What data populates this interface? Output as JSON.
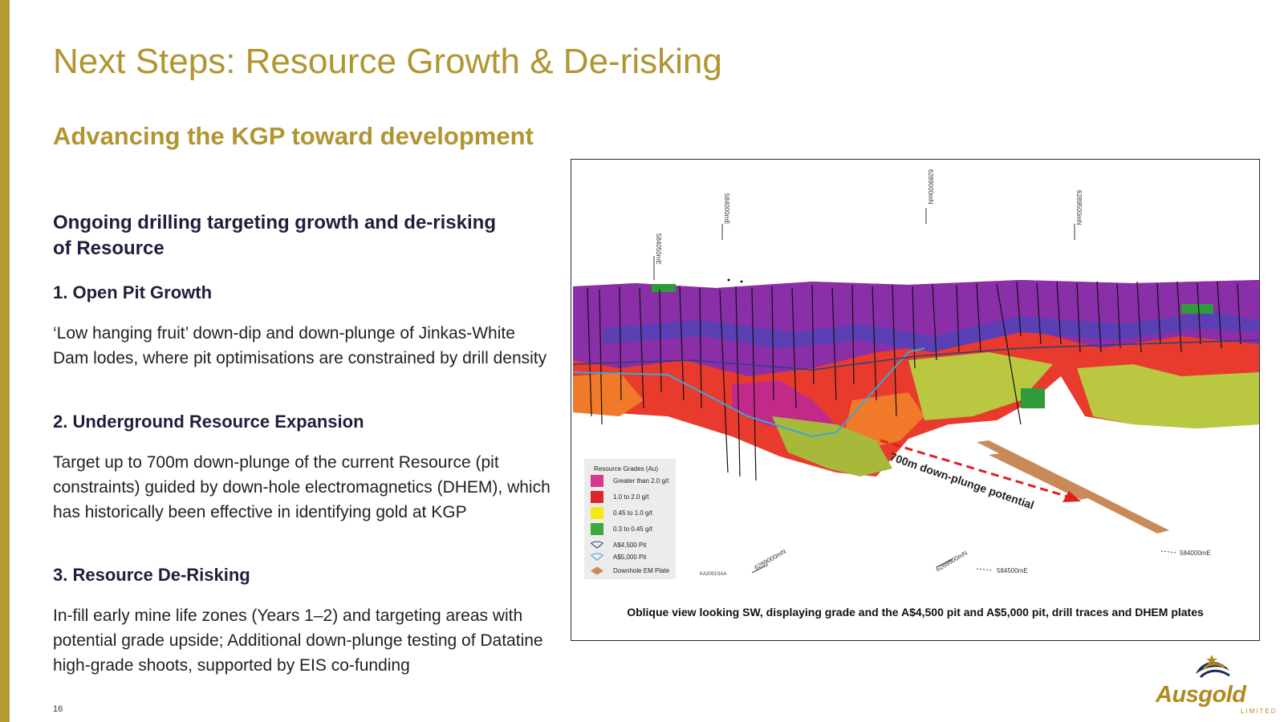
{
  "slide": {
    "title": "Next Steps: Resource Growth & De-risking",
    "subtitle": "Advancing the KGP toward development",
    "section_heading": "Ongoing drilling targeting growth and de-risking of Resource",
    "items": [
      {
        "heading": "1. Open Pit Growth",
        "body": "‘Low hanging fruit’ down-dip and down-plunge of Jinkas-White Dam lodes, where pit optimisations are constrained by drill density"
      },
      {
        "heading": "2. Underground Resource Expansion",
        "body": "Target up to 700m down-plunge of the current Resource (pit constraints) guided by down-hole electromagnetics (DHEM), which has historically been effective in identifying gold at KGP"
      },
      {
        "heading": "3. Resource De-Risking",
        "body": "In-fill early mine life zones (Years 1–2) and targeting areas with potential grade upside; Additional down-plunge testing of Datatine high-grade shoots, supported by EIS co-funding"
      }
    ],
    "page_number": "16",
    "accent_color": "#b09530"
  },
  "figure": {
    "caption": "Oblique view looking SW, displaying grade and the A$4,500 pit and A$5,000 pit, drill traces and DHEM plates",
    "annotation": "700m down-plunge potential",
    "legend_title": "Resource Grades (Au)",
    "legend": [
      {
        "label": "Greater than 2.0 g/t",
        "color": "#d63a8c"
      },
      {
        "label": "1.0 to 2.0 g/t",
        "color": "#e0242a"
      },
      {
        "label": "0.45 to 1.0 g/t",
        "color": "#f2ea12"
      },
      {
        "label": "0.3 to 0.45 g/t",
        "color": "#3daa3c"
      },
      {
        "label": "A$4,500 Pit",
        "color": "#2b3f7a"
      },
      {
        "label": "A$5,000 Pit",
        "color": "#3aa7d6"
      },
      {
        "label": "Downhole EM Plate",
        "color": "#c98a5a"
      }
    ],
    "coordinates": {
      "top_1": "584050mE",
      "top_2": "584000mE",
      "top_3": "6289000mN",
      "top_4": "6289500mN",
      "bottom_1": "6289000mN",
      "bottom_2": "6289500mN",
      "bottom_3": "584500mE",
      "bottom_4": "584000mE",
      "ref": "KA2001SAA"
    }
  },
  "logo": {
    "name": "Ausgold",
    "sub": "LIMITED"
  }
}
